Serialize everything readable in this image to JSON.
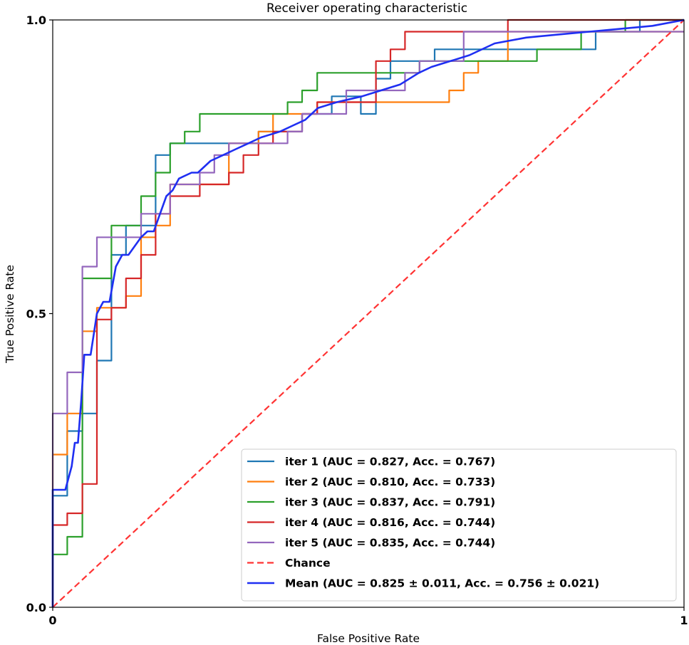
{
  "chart_data": {
    "type": "line",
    "title": "Receiver operating characteristic",
    "xlabel": "False Positive Rate",
    "ylabel": "True Positive Rate",
    "xlim": [
      0,
      1
    ],
    "ylim": [
      0,
      1
    ],
    "x_ticks": [
      {
        "value": 0,
        "label": "0"
      },
      {
        "value": 1,
        "label": "1"
      }
    ],
    "y_ticks": [
      {
        "value": 0,
        "label": "0.0"
      },
      {
        "value": 0.5,
        "label": "0.5"
      },
      {
        "value": 1,
        "label": "1.0"
      }
    ],
    "grid": false,
    "legend_position": "lower-right",
    "series": [
      {
        "name": "iter 1 (AUC = 0.827, Acc. = 0.767)",
        "color": "#1f77b4",
        "style": "solid",
        "points": [
          [
            0,
            0
          ],
          [
            0,
            0.19
          ],
          [
            0.023,
            0.19
          ],
          [
            0.023,
            0.3
          ],
          [
            0.047,
            0.3
          ],
          [
            0.047,
            0.33
          ],
          [
            0.07,
            0.33
          ],
          [
            0.07,
            0.42
          ],
          [
            0.093,
            0.42
          ],
          [
            0.093,
            0.6
          ],
          [
            0.116,
            0.6
          ],
          [
            0.116,
            0.65
          ],
          [
            0.163,
            0.65
          ],
          [
            0.163,
            0.77
          ],
          [
            0.186,
            0.77
          ],
          [
            0.186,
            0.79
          ],
          [
            0.326,
            0.79
          ],
          [
            0.326,
            0.81
          ],
          [
            0.395,
            0.81
          ],
          [
            0.395,
            0.84
          ],
          [
            0.442,
            0.84
          ],
          [
            0.442,
            0.87
          ],
          [
            0.488,
            0.87
          ],
          [
            0.488,
            0.84
          ],
          [
            0.512,
            0.84
          ],
          [
            0.512,
            0.9
          ],
          [
            0.535,
            0.9
          ],
          [
            0.535,
            0.93
          ],
          [
            0.605,
            0.93
          ],
          [
            0.605,
            0.95
          ],
          [
            0.86,
            0.95
          ],
          [
            0.86,
            0.98
          ],
          [
            0.93,
            0.98
          ],
          [
            0.93,
            1.0
          ],
          [
            1.0,
            1.0
          ]
        ]
      },
      {
        "name": "iter 2 (AUC = 0.810, Acc. = 0.733)",
        "color": "#ff7f0e",
        "style": "solid",
        "points": [
          [
            0,
            0
          ],
          [
            0,
            0.26
          ],
          [
            0.023,
            0.26
          ],
          [
            0.023,
            0.33
          ],
          [
            0.047,
            0.33
          ],
          [
            0.047,
            0.47
          ],
          [
            0.07,
            0.47
          ],
          [
            0.07,
            0.51
          ],
          [
            0.116,
            0.51
          ],
          [
            0.116,
            0.53
          ],
          [
            0.14,
            0.53
          ],
          [
            0.14,
            0.63
          ],
          [
            0.163,
            0.63
          ],
          [
            0.163,
            0.65
          ],
          [
            0.186,
            0.65
          ],
          [
            0.186,
            0.72
          ],
          [
            0.279,
            0.72
          ],
          [
            0.279,
            0.79
          ],
          [
            0.326,
            0.79
          ],
          [
            0.326,
            0.81
          ],
          [
            0.349,
            0.81
          ],
          [
            0.349,
            0.84
          ],
          [
            0.419,
            0.84
          ],
          [
            0.419,
            0.86
          ],
          [
            0.628,
            0.86
          ],
          [
            0.628,
            0.88
          ],
          [
            0.651,
            0.88
          ],
          [
            0.651,
            0.91
          ],
          [
            0.674,
            0.91
          ],
          [
            0.674,
            0.93
          ],
          [
            0.721,
            0.93
          ],
          [
            0.721,
            0.98
          ],
          [
            1.0,
            0.98
          ]
        ]
      },
      {
        "name": "iter 3 (AUC = 0.837, Acc. = 0.791)",
        "color": "#2ca02c",
        "style": "solid",
        "points": [
          [
            0,
            0
          ],
          [
            0,
            0.09
          ],
          [
            0.023,
            0.09
          ],
          [
            0.023,
            0.12
          ],
          [
            0.047,
            0.12
          ],
          [
            0.047,
            0.56
          ],
          [
            0.093,
            0.56
          ],
          [
            0.093,
            0.65
          ],
          [
            0.14,
            0.65
          ],
          [
            0.14,
            0.7
          ],
          [
            0.163,
            0.7
          ],
          [
            0.163,
            0.74
          ],
          [
            0.186,
            0.74
          ],
          [
            0.186,
            0.79
          ],
          [
            0.209,
            0.79
          ],
          [
            0.209,
            0.81
          ],
          [
            0.233,
            0.81
          ],
          [
            0.233,
            0.84
          ],
          [
            0.372,
            0.84
          ],
          [
            0.372,
            0.86
          ],
          [
            0.395,
            0.86
          ],
          [
            0.395,
            0.88
          ],
          [
            0.419,
            0.88
          ],
          [
            0.419,
            0.91
          ],
          [
            0.581,
            0.91
          ],
          [
            0.581,
            0.93
          ],
          [
            0.767,
            0.93
          ],
          [
            0.767,
            0.95
          ],
          [
            0.837,
            0.95
          ],
          [
            0.837,
            0.98
          ],
          [
            0.907,
            0.98
          ],
          [
            0.907,
            1.0
          ],
          [
            1.0,
            1.0
          ]
        ]
      },
      {
        "name": "iter 4 (AUC = 0.816, Acc. = 0.744)",
        "color": "#d62728",
        "style": "solid",
        "points": [
          [
            0,
            0
          ],
          [
            0,
            0.14
          ],
          [
            0.023,
            0.14
          ],
          [
            0.023,
            0.16
          ],
          [
            0.047,
            0.16
          ],
          [
            0.047,
            0.21
          ],
          [
            0.07,
            0.21
          ],
          [
            0.07,
            0.49
          ],
          [
            0.093,
            0.49
          ],
          [
            0.093,
            0.51
          ],
          [
            0.116,
            0.51
          ],
          [
            0.116,
            0.56
          ],
          [
            0.14,
            0.56
          ],
          [
            0.14,
            0.6
          ],
          [
            0.163,
            0.6
          ],
          [
            0.163,
            0.67
          ],
          [
            0.186,
            0.67
          ],
          [
            0.186,
            0.7
          ],
          [
            0.233,
            0.7
          ],
          [
            0.233,
            0.72
          ],
          [
            0.279,
            0.72
          ],
          [
            0.279,
            0.74
          ],
          [
            0.302,
            0.74
          ],
          [
            0.302,
            0.77
          ],
          [
            0.326,
            0.77
          ],
          [
            0.326,
            0.79
          ],
          [
            0.349,
            0.79
          ],
          [
            0.349,
            0.81
          ],
          [
            0.395,
            0.81
          ],
          [
            0.395,
            0.84
          ],
          [
            0.419,
            0.84
          ],
          [
            0.419,
            0.86
          ],
          [
            0.512,
            0.86
          ],
          [
            0.512,
            0.93
          ],
          [
            0.535,
            0.93
          ],
          [
            0.535,
            0.95
          ],
          [
            0.558,
            0.95
          ],
          [
            0.558,
            0.98
          ],
          [
            0.721,
            0.98
          ],
          [
            0.721,
            1.0
          ],
          [
            1.0,
            1.0
          ]
        ]
      },
      {
        "name": "iter 5 (AUC = 0.835, Acc. = 0.744)",
        "color": "#9467bd",
        "style": "solid",
        "points": [
          [
            0,
            0
          ],
          [
            0,
            0.33
          ],
          [
            0.023,
            0.33
          ],
          [
            0.023,
            0.4
          ],
          [
            0.047,
            0.4
          ],
          [
            0.047,
            0.58
          ],
          [
            0.07,
            0.58
          ],
          [
            0.07,
            0.63
          ],
          [
            0.14,
            0.63
          ],
          [
            0.14,
            0.67
          ],
          [
            0.186,
            0.67
          ],
          [
            0.186,
            0.72
          ],
          [
            0.233,
            0.72
          ],
          [
            0.233,
            0.74
          ],
          [
            0.256,
            0.74
          ],
          [
            0.256,
            0.77
          ],
          [
            0.279,
            0.77
          ],
          [
            0.279,
            0.79
          ],
          [
            0.372,
            0.79
          ],
          [
            0.372,
            0.81
          ],
          [
            0.395,
            0.81
          ],
          [
            0.395,
            0.84
          ],
          [
            0.465,
            0.84
          ],
          [
            0.465,
            0.88
          ],
          [
            0.558,
            0.88
          ],
          [
            0.558,
            0.91
          ],
          [
            0.581,
            0.91
          ],
          [
            0.581,
            0.93
          ],
          [
            0.651,
            0.93
          ],
          [
            0.651,
            0.98
          ],
          [
            1.0,
            0.98
          ]
        ]
      },
      {
        "name": "Chance",
        "color": "#ff3333",
        "style": "dashed",
        "points": [
          [
            0,
            0
          ],
          [
            1,
            1
          ]
        ]
      },
      {
        "name": "Mean (AUC = 0.825 ± 0.011, Acc. = 0.756 ± 0.021)",
        "color": "#1f2ff2",
        "style": "thick",
        "points": [
          [
            0,
            0
          ],
          [
            0,
            0.2
          ],
          [
            0.02,
            0.2
          ],
          [
            0.03,
            0.24
          ],
          [
            0.035,
            0.28
          ],
          [
            0.04,
            0.28
          ],
          [
            0.045,
            0.35
          ],
          [
            0.05,
            0.43
          ],
          [
            0.06,
            0.43
          ],
          [
            0.07,
            0.5
          ],
          [
            0.08,
            0.52
          ],
          [
            0.09,
            0.52
          ],
          [
            0.1,
            0.58
          ],
          [
            0.11,
            0.6
          ],
          [
            0.12,
            0.6
          ],
          [
            0.14,
            0.63
          ],
          [
            0.15,
            0.64
          ],
          [
            0.16,
            0.64
          ],
          [
            0.17,
            0.67
          ],
          [
            0.18,
            0.7
          ],
          [
            0.19,
            0.71
          ],
          [
            0.2,
            0.73
          ],
          [
            0.22,
            0.74
          ],
          [
            0.23,
            0.74
          ],
          [
            0.25,
            0.76
          ],
          [
            0.27,
            0.77
          ],
          [
            0.29,
            0.78
          ],
          [
            0.31,
            0.79
          ],
          [
            0.33,
            0.8
          ],
          [
            0.36,
            0.81
          ],
          [
            0.38,
            0.82
          ],
          [
            0.4,
            0.83
          ],
          [
            0.42,
            0.85
          ],
          [
            0.45,
            0.86
          ],
          [
            0.49,
            0.87
          ],
          [
            0.52,
            0.88
          ],
          [
            0.55,
            0.89
          ],
          [
            0.58,
            0.91
          ],
          [
            0.6,
            0.92
          ],
          [
            0.63,
            0.93
          ],
          [
            0.66,
            0.94
          ],
          [
            0.7,
            0.96
          ],
          [
            0.75,
            0.97
          ],
          [
            0.8,
            0.975
          ],
          [
            0.85,
            0.98
          ],
          [
            0.9,
            0.985
          ],
          [
            0.95,
            0.99
          ],
          [
            1.0,
            1.0
          ]
        ]
      }
    ]
  }
}
